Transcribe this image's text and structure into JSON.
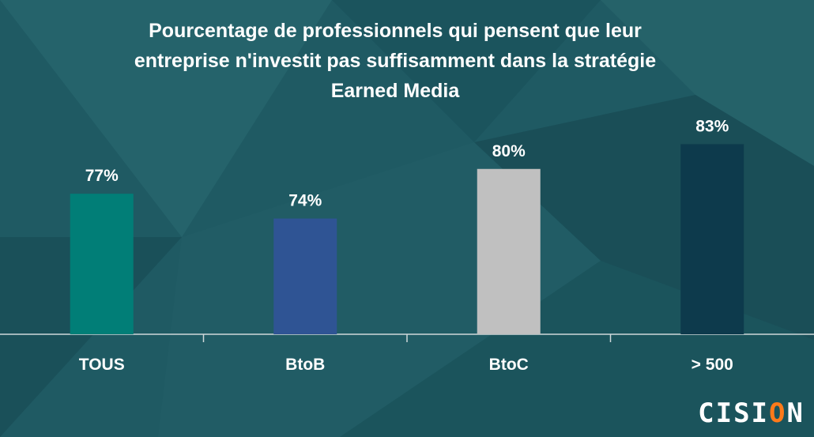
{
  "title_lines": [
    "Pourcentage de professionnels qui pensent que leur",
    "entreprise n'investit pas suffisamment dans la stratégie",
    "Earned Media"
  ],
  "chart_data": {
    "type": "bar",
    "title": "Pourcentage de professionnels qui pensent que leur entreprise n'investit pas suffisamment dans la stratégie Earned Media",
    "categories": [
      "TOUS",
      "BtoB",
      "BtoC",
      "> 500"
    ],
    "values": [
      77,
      74,
      80,
      83
    ],
    "value_labels": [
      "77%",
      "74%",
      "80%",
      "83%"
    ],
    "bar_colors": [
      "#017e77",
      "#2f5494",
      "#c0c0c0",
      "#0d3a4c"
    ],
    "ylim": [
      60,
      86
    ],
    "grid": false,
    "legend": "none"
  },
  "logo": {
    "main": "CISI",
    "accent": "O",
    "end": "N"
  }
}
